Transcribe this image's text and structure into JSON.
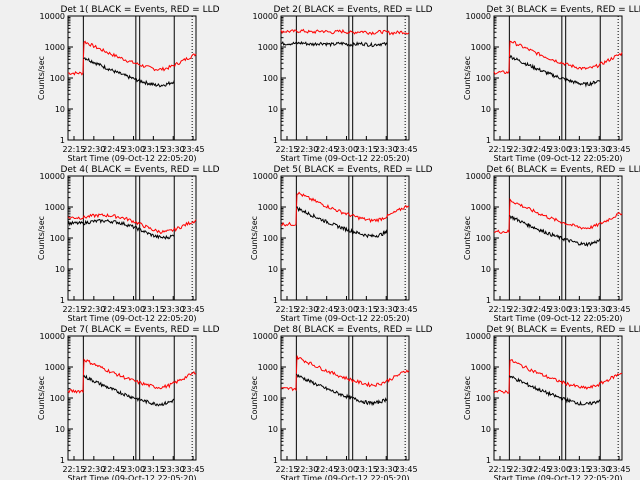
{
  "chart_data": [
    {
      "type": "line",
      "title": "Det 1(  BLACK = Events, RED = LLD",
      "ylabel": "Counts/sec",
      "xlabel": "Start Time (09-Oct-12 22:05:20)",
      "yscale": "log",
      "ylim": [
        1,
        10000
      ],
      "xticks": [
        "22:15",
        "22:30",
        "22:45",
        "23:00",
        "23:15",
        "23:30",
        "23:45"
      ],
      "yticks": [
        "1",
        "10",
        "100",
        "1000",
        "10000"
      ],
      "series": [
        {
          "color": "#ff0000",
          "shape": "decay",
          "level": 180
        },
        {
          "color": "#000000",
          "shape": "decay",
          "level": 55
        }
      ]
    },
    {
      "type": "line",
      "title": "Det 2(  BLACK = Events, RED = LLD",
      "ylabel": "",
      "xlabel": "Start Time (09-Oct-12 22:05:20)",
      "yscale": "log",
      "ylim": [
        1,
        10000
      ],
      "xticks": [
        "22:15",
        "22:30",
        "22:45",
        "23:00",
        "23:15",
        "23:30",
        "23:45"
      ],
      "yticks": [
        "1",
        "10",
        "100",
        "1000",
        "10000"
      ],
      "series": [
        {
          "color": "#ff0000",
          "shape": "flat",
          "level": 3200
        },
        {
          "color": "#000000",
          "shape": "flat",
          "level": 1300
        }
      ]
    },
    {
      "type": "line",
      "title": "Det 3(  BLACK = Events, RED = LLD",
      "ylabel": "Counts/sec",
      "xlabel": "Start Time (09-Oct-12 22:05:20)",
      "yscale": "log",
      "ylim": [
        1,
        10000
      ],
      "xticks": [
        "22:15",
        "22:30",
        "22:45",
        "23:00",
        "23:15",
        "23:30",
        "23:45"
      ],
      "yticks": [
        "1",
        "10",
        "100",
        "1000",
        "10000"
      ],
      "series": [
        {
          "color": "#ff0000",
          "shape": "decay",
          "level": 190
        },
        {
          "color": "#000000",
          "shape": "decay",
          "level": 60
        }
      ]
    },
    {
      "type": "line",
      "title": "Det 4(  BLACK = Events, RED = LLD",
      "ylabel": "Counts/sec",
      "xlabel": "Start Time (09-Oct-12 22:05:20)",
      "yscale": "log",
      "ylim": [
        1,
        10000
      ],
      "xticks": [
        "22:15",
        "22:30",
        "22:45",
        "23:00",
        "23:15",
        "23:30",
        "23:45"
      ],
      "yticks": [
        "1",
        "10",
        "100",
        "1000",
        "10000"
      ],
      "series": [
        {
          "color": "#ff0000",
          "shape": "wave",
          "level": 350
        },
        {
          "color": "#000000",
          "shape": "wave",
          "level": 230
        }
      ]
    },
    {
      "type": "line",
      "title": "Det 5(  BLACK = Events, RED = LLD",
      "ylabel": "Counts/sec",
      "xlabel": "Start Time (09-Oct-12 22:05:20)",
      "yscale": "log",
      "ylim": [
        1,
        10000
      ],
      "xticks": [
        "22:15",
        "22:30",
        "22:45",
        "23:00",
        "23:15",
        "23:30",
        "23:45"
      ],
      "yticks": [
        "1",
        "10",
        "100",
        "1000",
        "10000"
      ],
      "series": [
        {
          "color": "#ff0000",
          "shape": "decay",
          "level": 350
        },
        {
          "color": "#000000",
          "shape": "decay",
          "level": 110
        }
      ]
    },
    {
      "type": "line",
      "title": "Det 6(  BLACK = Events, RED = LLD",
      "ylabel": "Counts/sec",
      "xlabel": "Start Time (09-Oct-12 22:05:20)",
      "yscale": "log",
      "ylim": [
        1,
        10000
      ],
      "xticks": [
        "22:15",
        "22:30",
        "22:45",
        "23:00",
        "23:15",
        "23:30",
        "23:45"
      ],
      "yticks": [
        "1",
        "10",
        "100",
        "1000",
        "10000"
      ],
      "series": [
        {
          "color": "#ff0000",
          "shape": "decay",
          "level": 200
        },
        {
          "color": "#000000",
          "shape": "decay",
          "level": 60
        }
      ]
    },
    {
      "type": "line",
      "title": "Det 7(  BLACK = Events, RED = LLD",
      "ylabel": "Counts/sec",
      "xlabel": "Start Time (09-Oct-12 22:05:20)",
      "yscale": "log",
      "ylim": [
        1,
        10000
      ],
      "xticks": [
        "22:15",
        "22:30",
        "22:45",
        "23:00",
        "23:15",
        "23:30",
        "23:45"
      ],
      "yticks": [
        "1",
        "10",
        "100",
        "1000",
        "10000"
      ],
      "series": [
        {
          "color": "#ff0000",
          "shape": "decay",
          "level": 210
        },
        {
          "color": "#000000",
          "shape": "decay",
          "level": 60
        }
      ]
    },
    {
      "type": "line",
      "title": "Det 8(  BLACK = Events, RED = LLD",
      "ylabel": "Counts/sec",
      "xlabel": "Start Time (09-Oct-12 22:05:20)",
      "yscale": "log",
      "ylim": [
        1,
        10000
      ],
      "xticks": [
        "22:15",
        "22:30",
        "22:45",
        "23:00",
        "23:15",
        "23:30",
        "23:45"
      ],
      "yticks": [
        "1",
        "10",
        "100",
        "1000",
        "10000"
      ],
      "series": [
        {
          "color": "#ff0000",
          "shape": "decay",
          "level": 250
        },
        {
          "color": "#000000",
          "shape": "decay",
          "level": 65
        }
      ]
    },
    {
      "type": "line",
      "title": "Det 9(  BLACK = Events, RED = LLD",
      "ylabel": "Counts/sec",
      "xlabel": "Start Time (09-Oct-12 22:05:20)",
      "yscale": "log",
      "ylim": [
        1,
        10000
      ],
      "xticks": [
        "22:15",
        "22:30",
        "22:45",
        "23:00",
        "23:15",
        "23:30",
        "23:45"
      ],
      "yticks": [
        "1",
        "10",
        "100",
        "1000",
        "10000"
      ],
      "series": [
        {
          "color": "#ff0000",
          "shape": "decay",
          "level": 200
        },
        {
          "color": "#000000",
          "shape": "decay",
          "level": 60
        }
      ]
    }
  ]
}
